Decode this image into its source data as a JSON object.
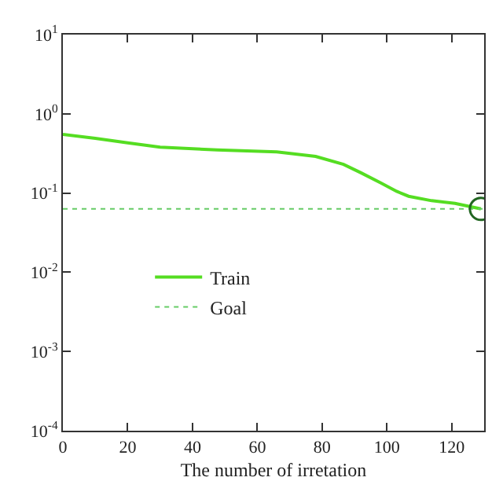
{
  "chart_data": {
    "type": "line",
    "xlabel": "The number of irretation",
    "log": "y",
    "xlim": [
      0,
      130
    ],
    "xticks": [
      0,
      20,
      40,
      60,
      80,
      100,
      120
    ],
    "ylim": [
      0.0001,
      10
    ],
    "yticks": [
      {
        "value": 10,
        "label": "10$^{1}$"
      },
      {
        "value": 1,
        "label": "10$^{0}$"
      },
      {
        "value": 0.1,
        "label": "10$^{-1}$"
      },
      {
        "value": 0.01,
        "label": "10$^{-2}$"
      },
      {
        "value": 0.001,
        "label": "10$^{-3}$"
      },
      {
        "value": 0.0001,
        "label": "10$^{-4}$"
      }
    ],
    "grid": false,
    "legend": "left",
    "series": [
      {
        "name": "Train",
        "color": "#55dd22",
        "line_style": "solid",
        "x": [
          0,
          10,
          20,
          30,
          47.6,
          66,
          78,
          86.6,
          92,
          98,
          103,
          106.7,
          113.8,
          121,
          129
        ],
        "values": [
          0.55,
          0.49,
          0.43,
          0.38,
          0.35,
          0.33,
          0.29,
          0.23,
          0.18,
          0.135,
          0.105,
          0.091,
          0.08,
          0.074,
          0.063
        ]
      },
      {
        "name": "Goal",
        "color": "#66cc66",
        "line_style": "dotted",
        "x": [
          0,
          130
        ],
        "values": [
          0.063,
          0.063
        ]
      },
      {
        "type": "scatter",
        "color": "#226622",
        "x": [
          129
        ],
        "values": [
          0.063
        ]
      }
    ]
  }
}
